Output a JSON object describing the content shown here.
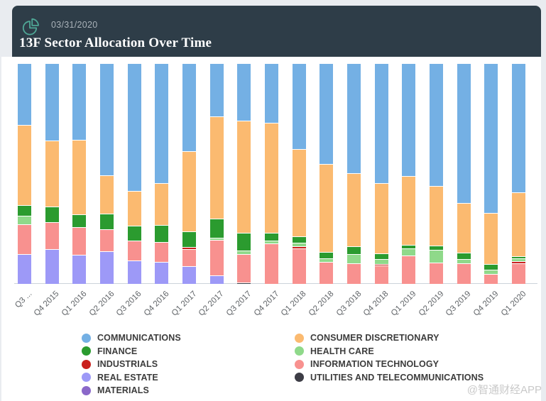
{
  "header": {
    "date": "03/31/2020",
    "title": "13F Sector Allocation Over Time",
    "background_color": "#2e3d48",
    "icon": "pie-chart-icon",
    "icon_color": "#4fa796"
  },
  "watermark": "@智通财经APP",
  "chart_data": {
    "type": "bar",
    "stacked": true,
    "stacking": "percent",
    "title": "13F Sector Allocation Over Time",
    "xlabel": "",
    "ylabel": "",
    "ylim": [
      0,
      100
    ],
    "grid": false,
    "legend_position": "bottom",
    "categories": [
      "Q3 ...",
      "Q4 2015",
      "Q1 2016",
      "Q2 2016",
      "Q3 2016",
      "Q4 2016",
      "Q1 2017",
      "Q2 2017",
      "Q3 2017",
      "Q4 2017",
      "Q1 2018",
      "Q2 2018",
      "Q3 2018",
      "Q4 2018",
      "Q1 2019",
      "Q2 2019",
      "Q3 2019",
      "Q4 2019",
      "Q1 2020"
    ],
    "series": [
      {
        "name": "COMMUNICATIONS",
        "color": "#74b0e4",
        "values": [
          28.0,
          35.0,
          34.8,
          50.8,
          57.9,
          54.2,
          39.9,
          24.0,
          26.2,
          27.0,
          38.8,
          45.5,
          49.8,
          54.2,
          51.2,
          55.5,
          63.3,
          67.8,
          58.5
        ]
      },
      {
        "name": "CONSUMER DISCRETIONARY",
        "color": "#fbba70",
        "values": [
          36.3,
          30.1,
          33.7,
          17.3,
          15.8,
          19.2,
          36.3,
          46.3,
          50.6,
          49.8,
          39.6,
          40.1,
          33.1,
          32.1,
          31.2,
          27.2,
          22.6,
          23.3,
          29.0
        ]
      },
      {
        "name": "FINANCE",
        "color": "#2b9b2f",
        "values": [
          4.8,
          7.0,
          5.9,
          7.0,
          6.8,
          7.6,
          7.1,
          8.8,
          8.1,
          3.7,
          2.9,
          2.7,
          3.5,
          2.3,
          1.6,
          1.8,
          2.7,
          2.5,
          1.0
        ]
      },
      {
        "name": "HEALTH CARE",
        "color": "#8fd98a",
        "values": [
          4.0,
          0,
          0,
          0,
          0,
          0,
          0,
          1.0,
          1.6,
          1.3,
          1.8,
          1.8,
          4.3,
          2.3,
          3.2,
          5.9,
          2.2,
          1.9,
          1.3
        ]
      },
      {
        "name": "INDUSTRIALS",
        "color": "#c9201d",
        "values": [
          0,
          0,
          0,
          0,
          0,
          0,
          0.8,
          0,
          0,
          0,
          0.8,
          0,
          0,
          0.6,
          0,
          0,
          0,
          0,
          1.0
        ]
      },
      {
        "name": "INFORMATION TECHNOLOGY",
        "color": "#f8918f",
        "values": [
          13.4,
          12.1,
          12.5,
          10.1,
          8.9,
          8.9,
          7.9,
          16.1,
          12.8,
          18.2,
          16.1,
          9.9,
          9.3,
          8.5,
          12.8,
          9.6,
          9.2,
          4.5,
          9.2
        ]
      },
      {
        "name": "REAL ESTATE",
        "color": "#9d99f7",
        "values": [
          13.5,
          15.8,
          13.1,
          14.8,
          10.6,
          10.1,
          8.0,
          3.8,
          0,
          0,
          0,
          0,
          0,
          0,
          0,
          0,
          0,
          0,
          0
        ]
      },
      {
        "name": "UTILITIES AND TELECOMMUNICATIONS",
        "color": "#3d3d46",
        "values": [
          0,
          0,
          0,
          0,
          0,
          0,
          0,
          0,
          0.7,
          0,
          0,
          0,
          0,
          0,
          0,
          0,
          0,
          0,
          0
        ]
      },
      {
        "name": "MATERIALS",
        "color": "#8a68c9",
        "values": [
          0,
          0,
          0,
          0,
          0,
          0,
          0,
          0,
          0,
          0,
          0,
          0,
          0,
          0,
          0,
          0,
          0,
          0,
          0
        ]
      }
    ]
  }
}
